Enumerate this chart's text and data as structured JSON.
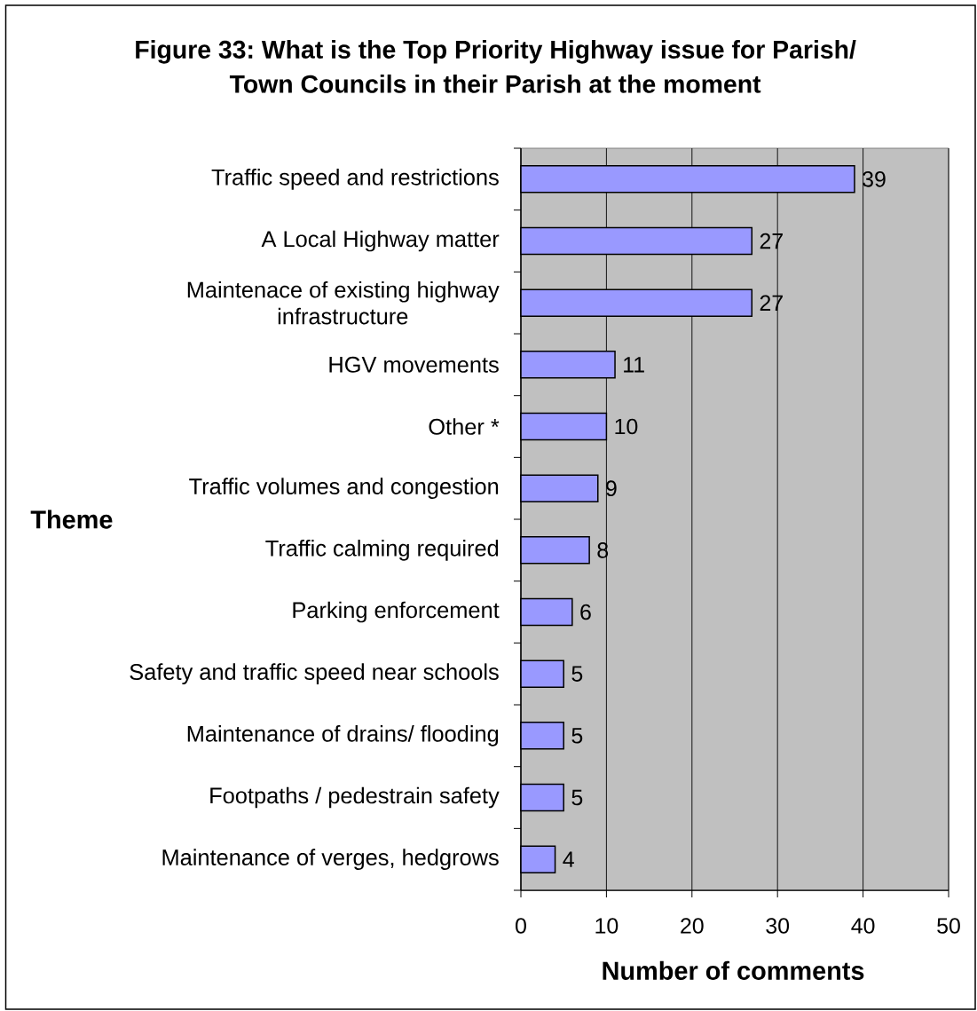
{
  "chart_data": {
    "type": "bar",
    "orientation": "horizontal",
    "title": "Figure 33: What is the Top Priority Highway issue for Parish/ Town Councils in their Parish at the moment",
    "xlabel": "Number of comments",
    "ylabel": "Theme",
    "categories": [
      "Traffic speed and restrictions",
      "A Local Highway matter",
      "Maintenace of existing highway infrastructure",
      "HGV movements",
      "Other *",
      "Traffic volumes and congestion",
      "Traffic calming required",
      "Parking enforcement",
      "Safety and traffic speed near schools",
      "Maintenance of drains/ flooding",
      "Footpaths / pedestrain safety",
      "Maintenance of verges, hedgrows"
    ],
    "values": [
      39,
      27,
      27,
      11,
      10,
      9,
      8,
      6,
      5,
      5,
      5,
      4
    ],
    "color": "#9999ff",
    "xlim": [
      0,
      50
    ],
    "xticks": [
      0,
      10,
      20,
      30,
      40,
      50
    ],
    "grid": "x",
    "data_labels": true
  }
}
